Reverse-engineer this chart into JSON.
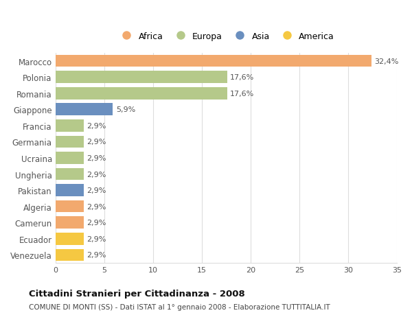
{
  "countries": [
    "Marocco",
    "Polonia",
    "Romania",
    "Giappone",
    "Francia",
    "Germania",
    "Ucraina",
    "Ungheria",
    "Pakistan",
    "Algeria",
    "Camerun",
    "Ecuador",
    "Venezuela"
  ],
  "values": [
    32.4,
    17.6,
    17.6,
    5.9,
    2.9,
    2.9,
    2.9,
    2.9,
    2.9,
    2.9,
    2.9,
    2.9,
    2.9
  ],
  "labels": [
    "32,4%",
    "17,6%",
    "17,6%",
    "5,9%",
    "2,9%",
    "2,9%",
    "2,9%",
    "2,9%",
    "2,9%",
    "2,9%",
    "2,9%",
    "2,9%",
    "2,9%"
  ],
  "continents": [
    "Africa",
    "Europa",
    "Europa",
    "Asia",
    "Europa",
    "Europa",
    "Europa",
    "Europa",
    "Asia",
    "Africa",
    "Africa",
    "America",
    "America"
  ],
  "colors": {
    "Africa": "#F2A96E",
    "Europa": "#B5C98A",
    "Asia": "#6A8FBF",
    "America": "#F5C842"
  },
  "title": "Cittadini Stranieri per Cittadinanza - 2008",
  "subtitle": "COMUNE DI MONTI (SS) - Dati ISTAT al 1° gennaio 2008 - Elaborazione TUTTITALIA.IT",
  "xlim": [
    0,
    35
  ],
  "xticks": [
    0,
    5,
    10,
    15,
    20,
    25,
    30,
    35
  ],
  "background_color": "#ffffff",
  "grid_color": "#dddddd",
  "bar_height": 0.75,
  "legend_order": [
    "Africa",
    "Europa",
    "Asia",
    "America"
  ]
}
